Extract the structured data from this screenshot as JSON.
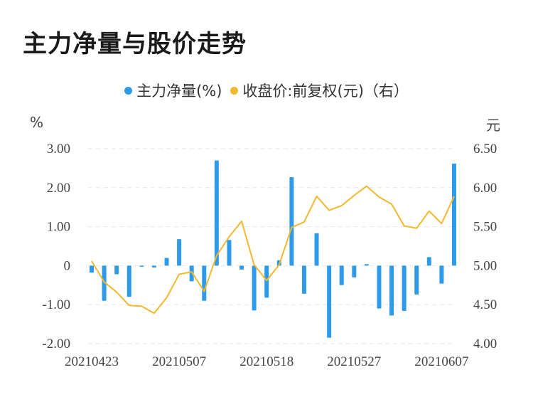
{
  "title": "主力净量与股价走势",
  "legend": {
    "series1_label": "主力净量(%)",
    "series2_label": "收盘价:前复权(元)（右）"
  },
  "units": {
    "left": "%",
    "right": "元"
  },
  "colors": {
    "bar": "#2e9bea",
    "line": "#f2b92e",
    "grid": "#e6e6e6"
  },
  "chart_data": {
    "type": "bar",
    "title": "主力净量与股价走势",
    "x_ticks": [
      "20210423",
      "20210507",
      "20210518",
      "20210527",
      "20210607"
    ],
    "x_tick_indices": [
      0,
      7,
      14,
      21,
      28
    ],
    "left_axis": {
      "label": "%",
      "ylim": [
        -2.0,
        3.0
      ],
      "ticks": [
        "3.00",
        "2.00",
        "1.00",
        "0",
        "-1.00",
        "-2.00"
      ],
      "tick_values": [
        3,
        2,
        1,
        0,
        -1,
        -2
      ]
    },
    "right_axis": {
      "label": "元",
      "ylim": [
        4.0,
        6.5
      ],
      "ticks": [
        "6.50",
        "6.00",
        "5.50",
        "5.00",
        "4.50",
        "4.00"
      ],
      "tick_values": [
        6.5,
        6.0,
        5.5,
        5.0,
        4.5,
        4.0
      ]
    },
    "grid": true,
    "legend_position": "top",
    "series": [
      {
        "name": "主力净量(%)",
        "type": "bar",
        "axis": "left",
        "values": [
          -0.18,
          -0.9,
          -0.22,
          -0.8,
          -0.02,
          -0.05,
          0.2,
          0.68,
          -0.4,
          -0.9,
          2.7,
          0.66,
          -0.1,
          -1.15,
          -0.82,
          0.14,
          2.27,
          -0.72,
          0.83,
          -1.85,
          -0.5,
          -0.3,
          0.04,
          -1.1,
          -1.28,
          -1.16,
          -0.74,
          0.22,
          -0.46,
          2.62
        ]
      },
      {
        "name": "收盘价:前复权(元)（右）",
        "type": "line",
        "axis": "right",
        "values": [
          5.06,
          4.79,
          4.66,
          4.49,
          4.48,
          4.39,
          4.59,
          4.89,
          4.92,
          4.67,
          5.13,
          5.37,
          5.57,
          5.01,
          4.81,
          5.01,
          5.49,
          5.56,
          5.89,
          5.71,
          5.77,
          5.9,
          6.02,
          5.88,
          5.79,
          5.51,
          5.48,
          5.7,
          5.54,
          5.89
        ]
      }
    ]
  }
}
